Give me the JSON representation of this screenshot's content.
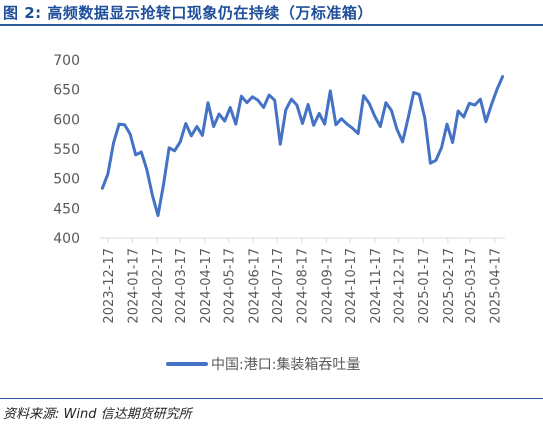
{
  "header": {
    "title": "图 2:  高频数据显示抢转口现象仍在持续（万标准箱）"
  },
  "footer": {
    "source": "资料来源:   Wind  信达期货研究所"
  },
  "colors": {
    "title": "#1f4e9a",
    "rule": "#2c5aa0",
    "line": "#4472c4",
    "axis_text": "#595959",
    "axis_line": "#d9d9d9"
  },
  "chart_data": {
    "type": "line",
    "title": "",
    "xlabel": "",
    "ylabel": "",
    "ylim": [
      400,
      700
    ],
    "yticks": [
      400,
      450,
      500,
      550,
      600,
      650,
      700
    ],
    "grid": false,
    "legend_position": "bottom",
    "xtick_labels": [
      "2023-12-17",
      "2024-01-17",
      "2024-02-17",
      "2024-03-17",
      "2024-04-17",
      "2024-05-17",
      "2024-06-17",
      "2024-07-17",
      "2024-08-17",
      "2024-09-17",
      "2024-10-17",
      "2024-11-17",
      "2024-12-17",
      "2025-01-17",
      "2025-02-17",
      "2025-03-17",
      "2025-04-17"
    ],
    "series": [
      {
        "name": "中国:港口:集装箱吞吐量",
        "color": "#4472c4",
        "x": [
          "2023-12-10",
          "2023-12-17",
          "2023-12-24",
          "2023-12-31",
          "2024-01-07",
          "2024-01-14",
          "2024-01-21",
          "2024-01-28",
          "2024-02-04",
          "2024-02-11",
          "2024-02-18",
          "2024-02-25",
          "2024-03-03",
          "2024-03-10",
          "2024-03-17",
          "2024-03-24",
          "2024-03-31",
          "2024-04-07",
          "2024-04-14",
          "2024-04-21",
          "2024-04-28",
          "2024-05-05",
          "2024-05-12",
          "2024-05-19",
          "2024-05-26",
          "2024-06-02",
          "2024-06-09",
          "2024-06-16",
          "2024-06-23",
          "2024-06-30",
          "2024-07-07",
          "2024-07-14",
          "2024-07-21",
          "2024-07-28",
          "2024-08-04",
          "2024-08-11",
          "2024-08-18",
          "2024-08-25",
          "2024-09-01",
          "2024-09-08",
          "2024-09-15",
          "2024-09-22",
          "2024-09-29",
          "2024-10-06",
          "2024-10-13",
          "2024-10-20",
          "2024-10-27",
          "2024-11-03",
          "2024-11-10",
          "2024-11-17",
          "2024-11-24",
          "2024-12-01",
          "2024-12-08",
          "2024-12-15",
          "2024-12-22",
          "2024-12-29",
          "2025-01-05",
          "2025-01-12",
          "2025-01-19",
          "2025-01-26",
          "2025-02-02",
          "2025-02-09",
          "2025-02-16",
          "2025-02-23",
          "2025-03-02",
          "2025-03-09",
          "2025-03-16",
          "2025-03-23",
          "2025-03-30",
          "2025-04-06",
          "2025-04-13",
          "2025-04-20",
          "2025-04-27"
        ],
        "values": [
          484,
          508,
          560,
          592,
          591,
          575,
          540,
          545,
          515,
          472,
          438,
          490,
          552,
          547,
          562,
          593,
          572,
          588,
          573,
          628,
          588,
          609,
          597,
          620,
          592,
          639,
          628,
          638,
          632,
          620,
          641,
          632,
          558,
          616,
          634,
          624,
          593,
          625,
          590,
          610,
          592,
          648,
          591,
          601,
          592,
          585,
          576,
          640,
          627,
          605,
          588,
          628,
          615,
          583,
          562,
          602,
          645,
          642,
          602,
          526,
          531,
          552,
          592,
          561,
          614,
          604,
          627,
          624,
          634,
          596,
          625,
          651,
          672
        ]
      }
    ]
  }
}
